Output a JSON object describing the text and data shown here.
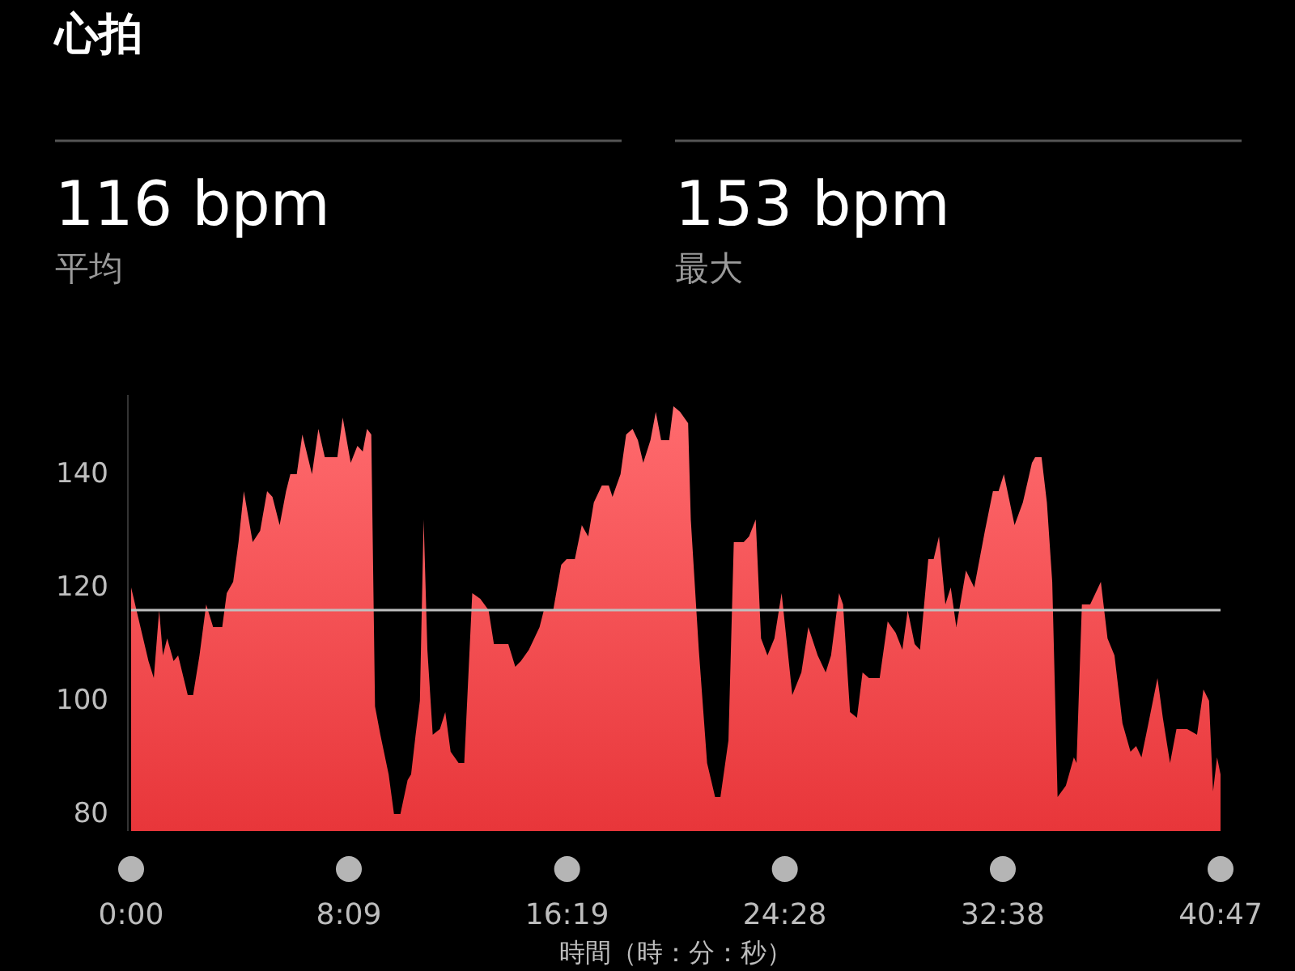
{
  "chart_data": {
    "type": "area",
    "title": "心拍",
    "xlabel": "時間（時：分：秒）",
    "annotations": [
      "116 bpm",
      "平均",
      "153 bpm",
      "最大"
    ],
    "color": "#e8363a",
    "xlim": [
      0,
      40.78
    ],
    "ylim": [
      77,
      154
    ],
    "xticks": [
      {
        "value": 0,
        "label": "0:00"
      },
      {
        "value": 8.15,
        "label": "8:09"
      },
      {
        "value": 16.32,
        "label": "16:19"
      },
      {
        "value": 24.47,
        "label": "24:28"
      },
      {
        "value": 32.63,
        "label": "32:38"
      },
      {
        "value": 40.78,
        "label": "40:47"
      }
    ],
    "yticks": [
      80,
      100,
      120,
      140
    ],
    "ref_lines": [
      {
        "axis": "y",
        "value": 116,
        "color": "#bfbfbf"
      }
    ],
    "x": [
      0,
      0.65,
      0.85,
      1.05,
      1.19,
      1.35,
      1.59,
      1.76,
      2.12,
      2.32,
      2.56,
      2.81,
      3.07,
      3.41,
      3.58,
      3.82,
      4.02,
      4.22,
      4.55,
      4.83,
      5.09,
      5.29,
      5.56,
      5.8,
      5.96,
      6.2,
      6.41,
      6.77,
      7.01,
      7.25,
      7.72,
      7.92,
      8.22,
      8.47,
      8.67,
      8.83,
      8.99,
      9.13,
      9.33,
      9.64,
      9.84,
      10.08,
      10.35,
      10.48,
      10.65,
      10.81,
      10.95,
      11.09,
      11.29,
      11.56,
      11.76,
      11.96,
      12.26,
      12.47,
      12.77,
      13.07,
      13.38,
      13.58,
      13.88,
      14.12,
      14.38,
      14.59,
      14.89,
      15.29,
      15.45,
      15.8,
      16.1,
      16.3,
      16.61,
      16.87,
      17.11,
      17.32,
      17.62,
      17.88,
      18.02,
      18.32,
      18.53,
      18.77,
      18.97,
      19.17,
      19.44,
      19.64,
      19.84,
      20.14,
      20.3,
      20.55,
      20.85,
      20.95,
      21.25,
      21.56,
      21.86,
      22.06,
      22.36,
      22.56,
      22.93,
      23.13,
      23.38,
      23.58,
      23.82,
      24.08,
      24.35,
      24.55,
      24.75,
      25.09,
      25.35,
      25.7,
      26.0,
      26.2,
      26.5,
      26.65,
      26.91,
      27.17,
      27.38,
      27.62,
      28.02,
      28.32,
      28.62,
      28.87,
      29.07,
      29.33,
      29.53,
      29.84,
      30.04,
      30.24,
      30.48,
      30.68,
      30.89,
      31.25,
      31.56,
      31.96,
      32.26,
      32.47,
      32.67,
      33.07,
      33.38,
      33.72,
      33.84,
      34.08,
      34.28,
      34.48,
      34.68,
      34.99,
      35.29,
      35.39,
      35.59,
      35.9,
      36.3,
      36.55,
      36.81,
      37.11,
      37.41,
      37.62,
      37.82,
      38.08,
      38.42,
      38.62,
      38.89,
      39.13,
      39.53,
      39.9,
      40.14,
      40.35,
      40.5,
      40.65,
      40.78
    ],
    "values": [
      120,
      107,
      104,
      116,
      108,
      111,
      107,
      108,
      101,
      101,
      108,
      117,
      113,
      113,
      119,
      121,
      128,
      137,
      128,
      130,
      137,
      136,
      131,
      137,
      140,
      140,
      147,
      140,
      148,
      143,
      143,
      150,
      142,
      145,
      144,
      148,
      147,
      99,
      94,
      87,
      80,
      80,
      86,
      87,
      94,
      100,
      132,
      109,
      94,
      95,
      98,
      91,
      89,
      89,
      119,
      118,
      116,
      110,
      110,
      110,
      106,
      107,
      109,
      113,
      116,
      116,
      124,
      125,
      125,
      131,
      129,
      135,
      138,
      138,
      136,
      140,
      147,
      148,
      146,
      142,
      146,
      151,
      146,
      146,
      152,
      151,
      149,
      132,
      109,
      89,
      83,
      83,
      93,
      128,
      128,
      129,
      132,
      111,
      108,
      111,
      119,
      110,
      101,
      105,
      113,
      108,
      105,
      108,
      119,
      117,
      98,
      97,
      105,
      104,
      104,
      114,
      112,
      109,
      116,
      110,
      109,
      125,
      125,
      129,
      117,
      120,
      113,
      123,
      120,
      130,
      137,
      137,
      140,
      131,
      135,
      142,
      143,
      143,
      135,
      121,
      83,
      85,
      90,
      89,
      117,
      117,
      121,
      111,
      108,
      96,
      91,
      92,
      90,
      96,
      104,
      97,
      89,
      95,
      95,
      94,
      102,
      100,
      84,
      90,
      87
    ]
  }
}
